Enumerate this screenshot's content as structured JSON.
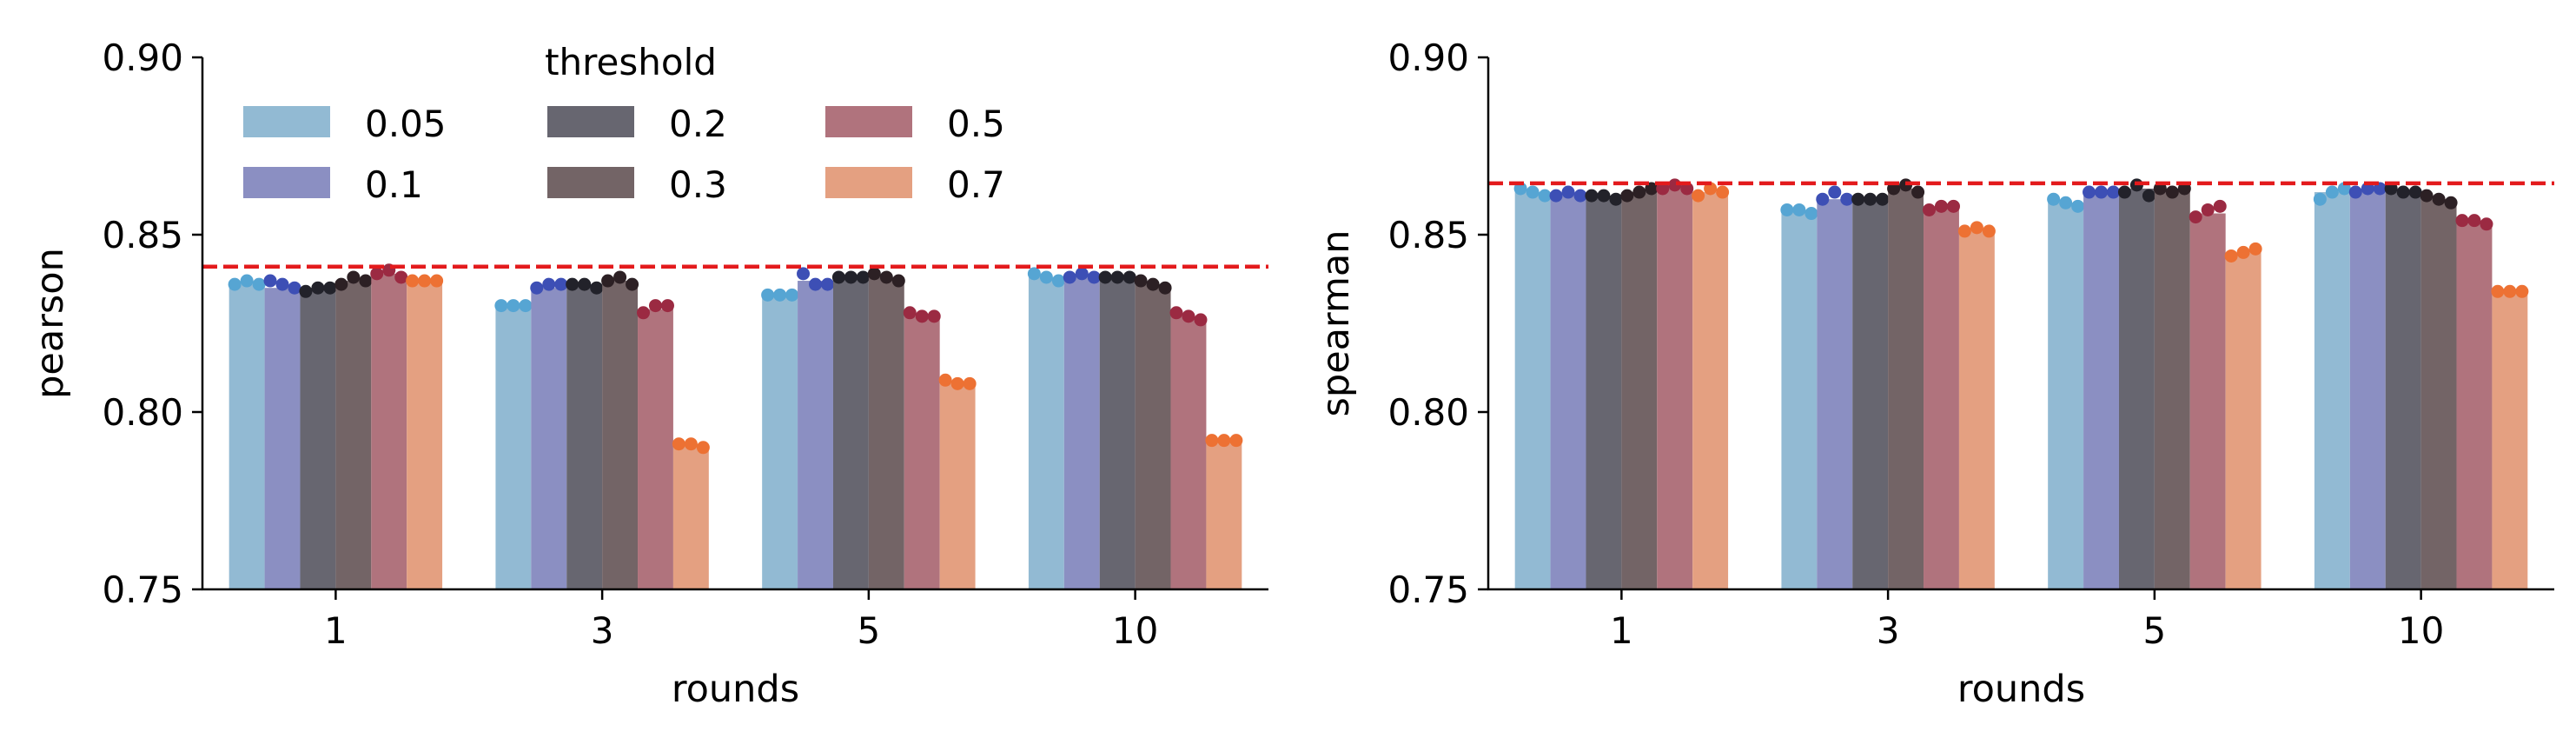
{
  "chart_data": [
    {
      "type": "bar",
      "xlabel": "rounds",
      "ylabel": "pearson",
      "ylim": [
        0.75,
        0.9
      ],
      "yticks": [
        "0.75",
        "0.80",
        "0.85",
        "0.90"
      ],
      "categories": [
        "1",
        "3",
        "5",
        "10"
      ],
      "reference_line": {
        "value": 0.841,
        "color": "#e31a1c",
        "style": "dashed"
      },
      "legend": {
        "title": "threshold",
        "placement": "top-left",
        "columns": 3
      },
      "series": [
        {
          "name": "0.05",
          "values": [
            0.836,
            0.83,
            0.833,
            0.838
          ],
          "points": [
            [
              0.836,
              0.837,
              0.836
            ],
            [
              0.83,
              0.83,
              0.83
            ],
            [
              0.833,
              0.833,
              0.833
            ],
            [
              0.839,
              0.838,
              0.837
            ]
          ]
        },
        {
          "name": "0.1",
          "values": [
            0.835,
            0.835,
            0.837,
            0.839
          ],
          "points": [
            [
              0.837,
              0.836,
              0.835
            ],
            [
              0.835,
              0.836,
              0.836
            ],
            [
              0.839,
              0.836,
              0.836
            ],
            [
              0.838,
              0.839,
              0.838
            ]
          ]
        },
        {
          "name": "0.2",
          "values": [
            0.835,
            0.836,
            0.838,
            0.838
          ],
          "points": [
            [
              0.834,
              0.835,
              0.835
            ],
            [
              0.836,
              0.836,
              0.835
            ],
            [
              0.838,
              0.838,
              0.838
            ],
            [
              0.838,
              0.838,
              0.838
            ]
          ]
        },
        {
          "name": "0.3",
          "values": [
            0.837,
            0.837,
            0.838,
            0.836
          ],
          "points": [
            [
              0.836,
              0.838,
              0.837
            ],
            [
              0.837,
              0.838,
              0.836
            ],
            [
              0.839,
              0.838,
              0.837
            ],
            [
              0.837,
              0.836,
              0.835
            ]
          ]
        },
        {
          "name": "0.5",
          "values": [
            0.839,
            0.829,
            0.827,
            0.827
          ],
          "points": [
            [
              0.839,
              0.84,
              0.838
            ],
            [
              0.828,
              0.83,
              0.83
            ],
            [
              0.828,
              0.827,
              0.827
            ],
            [
              0.828,
              0.827,
              0.826
            ]
          ]
        },
        {
          "name": "0.7",
          "values": [
            0.837,
            0.791,
            0.808,
            0.792
          ],
          "points": [
            [
              0.837,
              0.837,
              0.837
            ],
            [
              0.791,
              0.791,
              0.79
            ],
            [
              0.809,
              0.808,
              0.808
            ],
            [
              0.792,
              0.792,
              0.792
            ]
          ]
        }
      ]
    },
    {
      "type": "bar",
      "xlabel": "rounds",
      "ylabel": "spearman",
      "ylim": [
        0.75,
        0.9
      ],
      "yticks": [
        "0.75",
        "0.80",
        "0.85",
        "0.90"
      ],
      "categories": [
        "1",
        "3",
        "5",
        "10"
      ],
      "reference_line": {
        "value": 0.8645,
        "color": "#e31a1c",
        "style": "dashed"
      },
      "series": [
        {
          "name": "0.05",
          "values": [
            0.862,
            0.857,
            0.859,
            0.862
          ],
          "points": [
            [
              0.863,
              0.862,
              0.861
            ],
            [
              0.857,
              0.857,
              0.856
            ],
            [
              0.86,
              0.859,
              0.858
            ],
            [
              0.86,
              0.862,
              0.863
            ]
          ]
        },
        {
          "name": "0.1",
          "values": [
            0.861,
            0.86,
            0.862,
            0.863
          ],
          "points": [
            [
              0.861,
              0.862,
              0.861
            ],
            [
              0.86,
              0.862,
              0.86
            ],
            [
              0.862,
              0.862,
              0.862
            ],
            [
              0.862,
              0.863,
              0.863
            ]
          ]
        },
        {
          "name": "0.2",
          "values": [
            0.861,
            0.86,
            0.863,
            0.862
          ],
          "points": [
            [
              0.861,
              0.861,
              0.86
            ],
            [
              0.86,
              0.86,
              0.86
            ],
            [
              0.862,
              0.864,
              0.861
            ],
            [
              0.863,
              0.862,
              0.862
            ]
          ]
        },
        {
          "name": "0.3",
          "values": [
            0.862,
            0.863,
            0.863,
            0.86
          ],
          "points": [
            [
              0.861,
              0.862,
              0.863
            ],
            [
              0.863,
              0.864,
              0.862
            ],
            [
              0.863,
              0.862,
              0.863
            ],
            [
              0.861,
              0.86,
              0.859
            ]
          ]
        },
        {
          "name": "0.5",
          "values": [
            0.863,
            0.858,
            0.856,
            0.854
          ],
          "points": [
            [
              0.863,
              0.864,
              0.863
            ],
            [
              0.857,
              0.858,
              0.858
            ],
            [
              0.855,
              0.857,
              0.858
            ],
            [
              0.854,
              0.854,
              0.853
            ]
          ]
        },
        {
          "name": "0.7",
          "values": [
            0.862,
            0.851,
            0.845,
            0.834
          ],
          "points": [
            [
              0.861,
              0.863,
              0.862
            ],
            [
              0.851,
              0.852,
              0.851
            ],
            [
              0.844,
              0.845,
              0.846
            ],
            [
              0.834,
              0.834,
              0.834
            ]
          ]
        }
      ]
    }
  ],
  "colors": {
    "bars": [
      "#92bad3",
      "#8b8fc2",
      "#676670",
      "#736466",
      "#b0737d",
      "#e4a081"
    ],
    "points": [
      "#56a5d3",
      "#3d4fb5",
      "#22222a",
      "#2c2024",
      "#9b2a42",
      "#ed7133"
    ],
    "reference": "#e31a1c",
    "axis": "#000000"
  }
}
